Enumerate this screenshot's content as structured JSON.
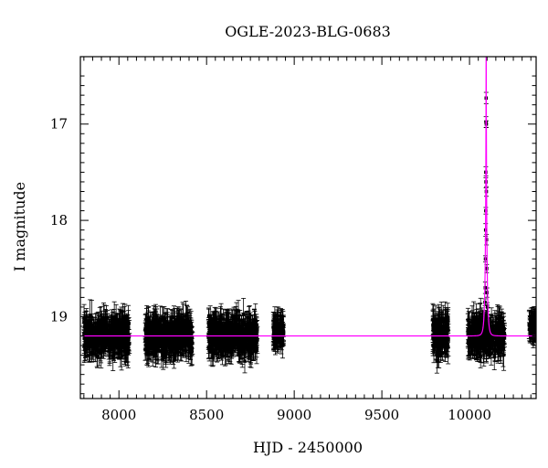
{
  "chart_data": {
    "type": "scatter",
    "title": "OGLE-2023-BLG-0683",
    "xlabel": "HJD - 2450000",
    "ylabel": "I magnitude",
    "xlim": [
      7780,
      10380
    ],
    "ylim": [
      19.85,
      16.3
    ],
    "x_ticks": [
      8000,
      8500,
      9000,
      9500,
      10000
    ],
    "x_tick_labels": [
      "8000",
      "8500",
      "9000",
      "9500",
      "10000"
    ],
    "y_ticks": [
      17,
      18,
      19
    ],
    "y_tick_labels": [
      "17",
      "18",
      "19"
    ],
    "baseline_mag": 19.2,
    "grid": false,
    "series": [
      {
        "kind": "photometry_points",
        "color": "#000000",
        "error_bars": true,
        "seasons": [
          {
            "x_range": [
              7800,
              8060
            ],
            "y_center": 19.2,
            "y_spread": 0.38
          },
          {
            "x_range": [
              8150,
              8420
            ],
            "y_center": 19.2,
            "y_spread": 0.38
          },
          {
            "x_range": [
              8510,
              8790
            ],
            "y_center": 19.2,
            "y_spread": 0.38
          },
          {
            "x_range": [
              8880,
              8940
            ],
            "y_center": 19.15,
            "y_spread": 0.22
          },
          {
            "x_range": [
              9790,
              9880
            ],
            "y_center": 19.2,
            "y_spread": 0.4
          },
          {
            "x_range": [
              9990,
              10200
            ],
            "y_center": 19.2,
            "y_spread": 0.38
          },
          {
            "x_range": [
              10340,
              10380
            ],
            "y_center": 19.1,
            "y_spread": 0.12
          }
        ],
        "event_points": [
          {
            "x": 10095,
            "y": 16.73
          },
          {
            "x": 10094,
            "y": 16.98
          },
          {
            "x": 10096,
            "y": 17.0
          },
          {
            "x": 10093,
            "y": 17.5
          },
          {
            "x": 10094,
            "y": 17.6
          },
          {
            "x": 10096,
            "y": 17.7
          },
          {
            "x": 10093,
            "y": 17.9
          },
          {
            "x": 10092,
            "y": 18.1
          },
          {
            "x": 10097,
            "y": 18.2
          },
          {
            "x": 10091,
            "y": 18.4
          },
          {
            "x": 10098,
            "y": 18.5
          },
          {
            "x": 10090,
            "y": 18.7
          },
          {
            "x": 10100,
            "y": 18.75
          },
          {
            "x": 10088,
            "y": 18.85
          },
          {
            "x": 10102,
            "y": 18.9
          }
        ]
      },
      {
        "kind": "model_curve",
        "color": "#ff00ff",
        "model": {
          "t0": 10095,
          "tE": 10,
          "u0": 0.06,
          "baseline": 19.2
        }
      }
    ]
  }
}
